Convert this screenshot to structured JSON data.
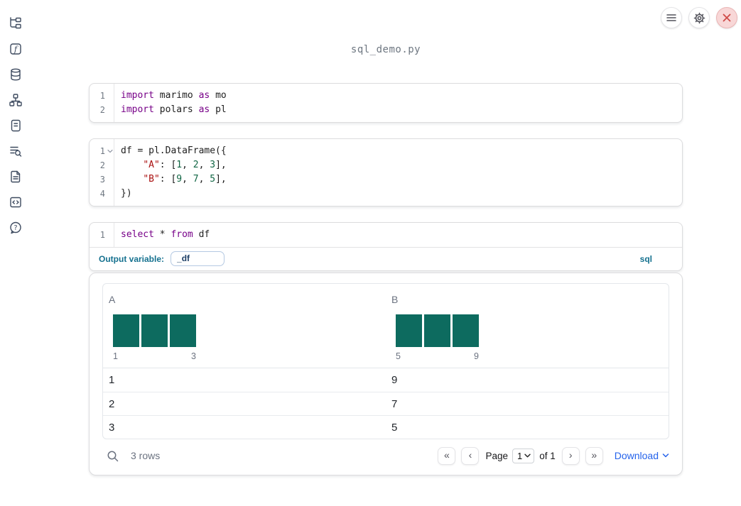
{
  "app": {
    "filename": "sql_demo.py"
  },
  "sidebar": {
    "icons": [
      "file-explorer",
      "functions",
      "datasources",
      "dependency-graph",
      "outline",
      "logs",
      "documentation",
      "snippets",
      "help"
    ]
  },
  "topbar": {
    "buttons": [
      "menu",
      "settings",
      "close"
    ]
  },
  "cells": [
    {
      "type": "python",
      "fold_chevron": false,
      "lines": [
        [
          {
            "t": "kw",
            "s": "import"
          },
          {
            "t": "pl",
            "s": " marimo "
          },
          {
            "t": "kw",
            "s": "as"
          },
          {
            "t": "pl",
            "s": " mo"
          }
        ],
        [
          {
            "t": "kw",
            "s": "import"
          },
          {
            "t": "pl",
            "s": " polars "
          },
          {
            "t": "kw",
            "s": "as"
          },
          {
            "t": "pl",
            "s": " pl"
          }
        ]
      ]
    },
    {
      "type": "python",
      "fold_chevron": true,
      "lines": [
        [
          {
            "t": "pl",
            "s": "df = pl.DataFrame({"
          }
        ],
        [
          {
            "t": "pl",
            "s": "    "
          },
          {
            "t": "str",
            "s": "\"A\""
          },
          {
            "t": "pl",
            "s": ": ["
          },
          {
            "t": "num",
            "s": "1"
          },
          {
            "t": "pl",
            "s": ", "
          },
          {
            "t": "num",
            "s": "2"
          },
          {
            "t": "pl",
            "s": ", "
          },
          {
            "t": "num",
            "s": "3"
          },
          {
            "t": "pl",
            "s": "],"
          }
        ],
        [
          {
            "t": "pl",
            "s": "    "
          },
          {
            "t": "str",
            "s": "\"B\""
          },
          {
            "t": "pl",
            "s": ": ["
          },
          {
            "t": "num",
            "s": "9"
          },
          {
            "t": "pl",
            "s": ", "
          },
          {
            "t": "num",
            "s": "7"
          },
          {
            "t": "pl",
            "s": ", "
          },
          {
            "t": "num",
            "s": "5"
          },
          {
            "t": "pl",
            "s": "],"
          }
        ],
        [
          {
            "t": "pl",
            "s": "})"
          }
        ]
      ]
    },
    {
      "type": "sql",
      "fold_chevron": false,
      "lines": [
        [
          {
            "t": "kw",
            "s": "select"
          },
          {
            "t": "pl",
            "s": " * "
          },
          {
            "t": "kw",
            "s": "from"
          },
          {
            "t": "pl",
            "s": " df"
          }
        ]
      ],
      "output_variable_label": "Output variable:",
      "output_variable_value": "_df",
      "language_badge": "sql"
    }
  ],
  "table": {
    "columns": [
      {
        "name": "A",
        "histogram": {
          "bar_counts": [
            1,
            1,
            1
          ],
          "x_min_label": "1",
          "x_max_label": "3",
          "bar_color": "#0d6b5f"
        }
      },
      {
        "name": "B",
        "histogram": {
          "bar_counts": [
            1,
            1,
            1
          ],
          "x_min_label": "5",
          "x_max_label": "9",
          "bar_color": "#0d6b5f"
        }
      }
    ],
    "rows": [
      [
        "1",
        "9"
      ],
      [
        "2",
        "7"
      ],
      [
        "3",
        "5"
      ]
    ],
    "footer": {
      "row_count_label": "3 rows",
      "pagination": {
        "first_icon": "«",
        "prev_icon": "‹",
        "page_label": "Page",
        "page_value": "1",
        "of_label": "of 1",
        "next_icon": "›",
        "last_icon": "»"
      },
      "download_label": "Download"
    }
  },
  "colors": {
    "accent_blue": "#2563eb",
    "histogram_bar": "#0d6b5f",
    "sql_accent": "#15718f",
    "code_keyword": "#770088",
    "code_string": "#aa1111",
    "code_number": "#116644",
    "close_red": "#cf4a47"
  }
}
